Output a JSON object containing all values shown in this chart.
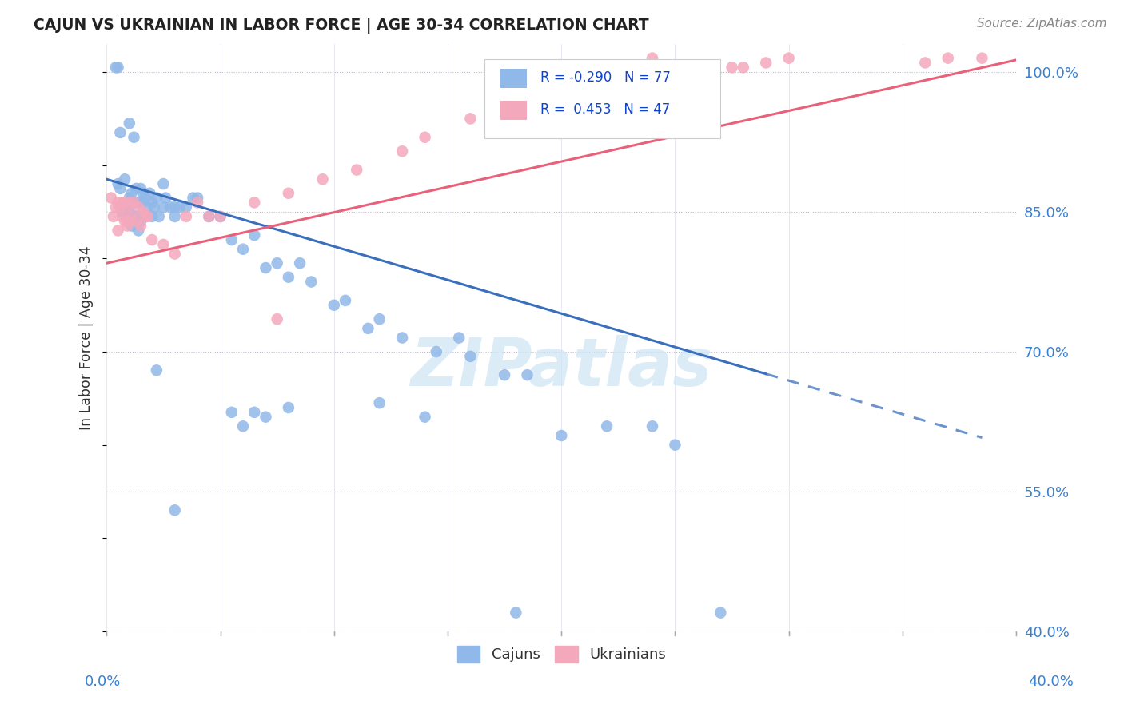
{
  "title": "CAJUN VS UKRAINIAN IN LABOR FORCE | AGE 30-34 CORRELATION CHART",
  "source": "Source: ZipAtlas.com",
  "ylabel": "In Labor Force | Age 30-34",
  "y_ticks": [
    40.0,
    55.0,
    70.0,
    85.0,
    100.0
  ],
  "x_min": 0.0,
  "x_max": 40.0,
  "y_min": 40.0,
  "y_max": 103.0,
  "cajun_color": "#90b8e8",
  "ukrainian_color": "#f4a8bc",
  "cajun_line_color": "#3a6fbb",
  "ukrainian_line_color": "#e8607a",
  "watermark_text": "ZIPatlas",
  "watermark_color": "#cce4f5",
  "background_color": "#ffffff",
  "cajun_intercept": 88.5,
  "cajun_slope": -0.72,
  "cajun_solid_end": 29.0,
  "cajun_dashed_end": 38.5,
  "ukrainian_intercept": 79.5,
  "ukrainian_slope": 0.545,
  "cajun_points_x": [
    0.4,
    0.5,
    0.5,
    0.6,
    0.6,
    0.7,
    0.8,
    0.9,
    1.0,
    1.0,
    1.0,
    1.1,
    1.1,
    1.2,
    1.2,
    1.3,
    1.3,
    1.4,
    1.4,
    1.5,
    1.5,
    1.6,
    1.6,
    1.7,
    1.7,
    1.8,
    1.9,
    2.0,
    2.0,
    2.1,
    2.2,
    2.3,
    2.5,
    2.5,
    2.6,
    2.8,
    3.0,
    3.0,
    3.2,
    3.5,
    3.8,
    4.0,
    4.5,
    5.0,
    5.5,
    6.0,
    6.5,
    7.0,
    7.5,
    8.0,
    8.5,
    9.0,
    10.0,
    10.5,
    11.5,
    12.0,
    13.0,
    14.5,
    15.5,
    16.0,
    17.5,
    18.5,
    2.2,
    3.0,
    5.5,
    6.0,
    6.5,
    7.0,
    8.0,
    12.0,
    14.0,
    18.0,
    20.0,
    22.0,
    24.0,
    25.0,
    27.0
  ],
  "cajun_points_y": [
    100.5,
    100.5,
    88.0,
    93.5,
    87.5,
    85.0,
    88.5,
    86.0,
    94.5,
    86.5,
    85.0,
    87.0,
    83.5,
    93.0,
    86.0,
    87.5,
    84.5,
    86.0,
    83.0,
    87.5,
    84.0,
    87.0,
    86.0,
    86.5,
    84.5,
    85.5,
    87.0,
    86.0,
    84.5,
    85.5,
    86.5,
    84.5,
    88.0,
    85.5,
    86.5,
    85.5,
    85.5,
    84.5,
    85.5,
    85.5,
    86.5,
    86.5,
    84.5,
    84.5,
    82.0,
    81.0,
    82.5,
    79.0,
    79.5,
    78.0,
    79.5,
    77.5,
    75.0,
    75.5,
    72.5,
    73.5,
    71.5,
    70.0,
    71.5,
    69.5,
    67.5,
    67.5,
    68.0,
    53.0,
    63.5,
    62.0,
    63.5,
    63.0,
    64.0,
    64.5,
    63.0,
    42.0,
    61.0,
    62.0,
    62.0,
    60.0,
    42.0
  ],
  "ukrainian_points_x": [
    0.2,
    0.3,
    0.4,
    0.5,
    0.5,
    0.6,
    0.7,
    0.7,
    0.8,
    0.8,
    0.9,
    0.9,
    1.0,
    1.0,
    1.1,
    1.2,
    1.3,
    1.4,
    1.5,
    1.6,
    1.7,
    1.8,
    2.0,
    2.5,
    3.0,
    3.5,
    4.0,
    4.5,
    5.0,
    6.5,
    7.5,
    8.0,
    9.5,
    11.0,
    13.0,
    14.0,
    16.0,
    20.0,
    22.0,
    24.0,
    27.5,
    28.0,
    29.0,
    30.0,
    36.0,
    37.0,
    38.5
  ],
  "ukrainian_points_y": [
    86.5,
    84.5,
    85.5,
    86.0,
    83.0,
    85.5,
    86.0,
    84.5,
    86.0,
    84.0,
    85.5,
    83.5,
    86.0,
    84.0,
    84.5,
    86.0,
    84.0,
    85.5,
    83.5,
    85.0,
    84.5,
    84.5,
    82.0,
    81.5,
    80.5,
    84.5,
    86.0,
    84.5,
    84.5,
    86.0,
    73.5,
    87.0,
    88.5,
    89.5,
    91.5,
    93.0,
    95.0,
    99.0,
    100.5,
    101.5,
    100.5,
    100.5,
    101.0,
    101.5,
    101.0,
    101.5,
    101.5
  ],
  "legend_items": [
    {
      "label": "R = -0.290   N = 77",
      "color": "#90b8e8"
    },
    {
      "label": "R =  0.453   N = 47",
      "color": "#f4a8bc"
    }
  ]
}
